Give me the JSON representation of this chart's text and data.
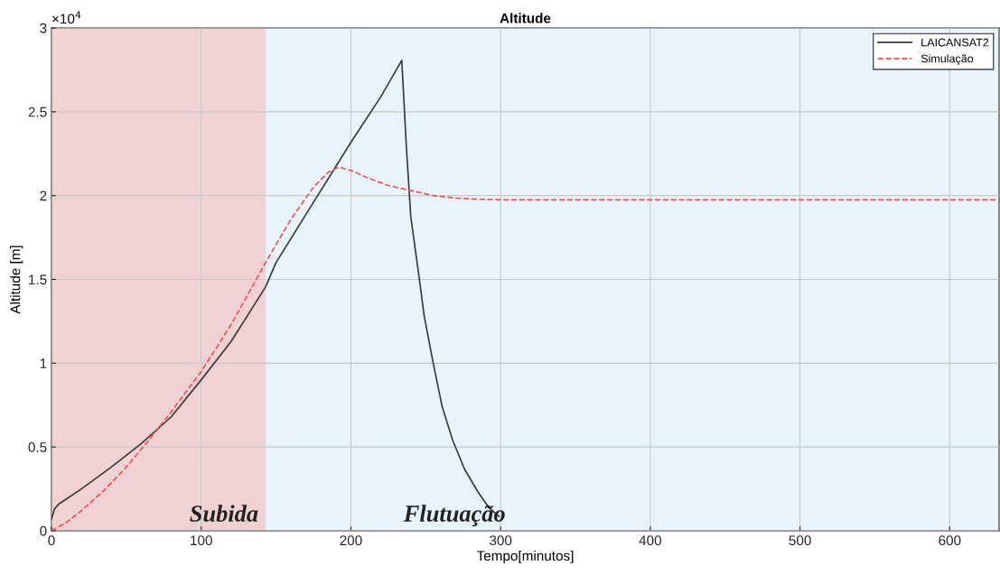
{
  "chart_data": {
    "type": "line",
    "title": "Altitude",
    "xlabel": "Tempo[minutos]",
    "ylabel": "Altitude [m]",
    "xlim": [
      0,
      633
    ],
    "xticks": [
      0,
      100,
      200,
      300,
      400,
      500,
      600
    ],
    "ylim": [
      0,
      3
    ],
    "yticks": [
      0,
      0.5,
      1,
      1.5,
      2,
      2.5,
      3
    ],
    "annotations": [
      "×10$^{4}$"
    ],
    "grid": true,
    "legend": "top right",
    "bands": [
      {
        "axis": "x",
        "from": 0,
        "to": 143,
        "label": "Subida",
        "color": "#f0d2d4"
      },
      {
        "axis": "x",
        "from": 143,
        "to": 633,
        "label": "Flutuação",
        "color": "#e8f4fb"
      }
    ],
    "series": [
      {
        "name": "LAICANSAT2",
        "color": "#3a3a3a",
        "line_style": "solid",
        "x": [
          0,
          2,
          5,
          10,
          20,
          40,
          60,
          80,
          100,
          120,
          143,
          150,
          175,
          200,
          220,
          234,
          237,
          240,
          245,
          249,
          255,
          261,
          268,
          276,
          285,
          292,
          299
        ],
        "values": [
          0.07,
          0.13,
          0.16,
          0.19,
          0.25,
          0.38,
          0.52,
          0.68,
          0.9,
          1.13,
          1.455,
          1.6,
          1.96,
          2.317,
          2.59,
          2.807,
          2.3,
          1.875,
          1.55,
          1.28,
          1.0,
          0.74,
          0.54,
          0.366,
          0.23,
          0.14,
          0.086
        ]
      },
      {
        "name": "Simulação",
        "color": "#f0504f",
        "line_style": "dashed",
        "x": [
          0,
          10,
          20,
          35,
          50,
          65,
          80,
          100,
          120,
          143,
          160,
          175,
          185,
          192,
          200,
          210,
          225,
          240,
          255,
          270,
          285,
          300,
          400,
          500,
          633
        ],
        "values": [
          0,
          0.05,
          0.12,
          0.24,
          0.38,
          0.54,
          0.71,
          0.95,
          1.23,
          1.6,
          1.86,
          2.05,
          2.14,
          2.17,
          2.15,
          2.11,
          2.06,
          2.03,
          2.0,
          1.985,
          1.978,
          1.975,
          1.975,
          1.975,
          1.975
        ]
      }
    ]
  }
}
